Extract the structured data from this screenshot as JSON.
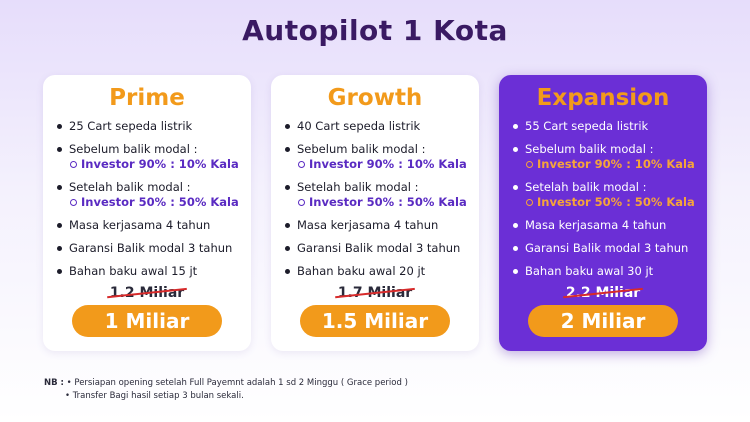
{
  "page": {
    "title": "Autopilot 1 Kota"
  },
  "cards": [
    {
      "name": "Prime",
      "cart": "25 Cart sepeda listrik",
      "before_label": "Sebelum balik modal :",
      "before_value": "Investor 90% : 10% Kala",
      "after_label": "Setelah balik modal :",
      "after_value": "Investor 50% : 50% Kala",
      "term": "Masa kerjasama 4 tahun",
      "guarantee": "Garansi Balik modal 3 tahun",
      "material": "Bahan baku awal 15 jt",
      "old_price": "1.2 Miliar",
      "price": "1 Miliar"
    },
    {
      "name": "Growth",
      "cart": "40 Cart sepeda listrik",
      "before_label": "Sebelum balik modal :",
      "before_value": "Investor 90% : 10% Kala",
      "after_label": "Setelah balik modal :",
      "after_value": "Investor 50% : 50% Kala",
      "term": "Masa kerjasama 4 tahun",
      "guarantee": "Garansi Balik modal 3 tahun",
      "material": "Bahan baku awal 20 jt",
      "old_price": "1.7 Miliar",
      "price": "1.5 Miliar"
    },
    {
      "name": "Expansion",
      "cart": "55 Cart sepeda listrik",
      "before_label": "Sebelum balik modal :",
      "before_value": "Investor 90% : 10% Kala",
      "after_label": "Setelah balik modal :",
      "after_value": "Investor 50% : 50% Kala",
      "term": "Masa kerjasama 4 tahun",
      "guarantee": "Garansi Balik modal 3 tahun",
      "material": "Bahan baku awal 30 jt",
      "old_price": "2.2 Miliar",
      "price": "2 Miliar"
    }
  ],
  "notes": {
    "label": "NB :",
    "items": [
      "• Persiapan opening setelah Full Payemnt adalah 1 sd 2 Minggu ( Grace period )",
      "• Transfer Bagi hasil setiap 3 bulan sekali."
    ]
  },
  "colors": {
    "accent_orange": "#f29a1b",
    "highlight_purple": "#6b2fd6",
    "title_color": "#3a1a63",
    "investor_text": "#5a2bc2",
    "strike_red": "#d72a2a"
  }
}
